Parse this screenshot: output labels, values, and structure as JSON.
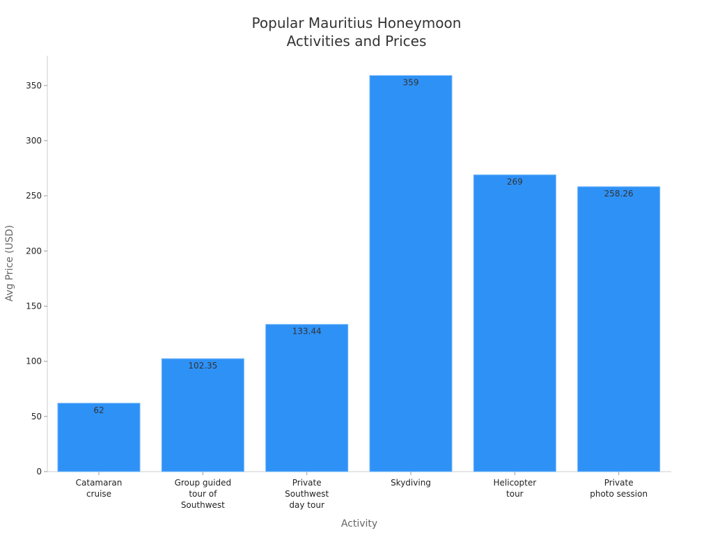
{
  "chart_data": {
    "type": "bar",
    "title_lines": [
      "Popular Mauritius Honeymoon",
      "Activities and Prices"
    ],
    "xlabel": "Activity",
    "ylabel": "Avg Price (USD)",
    "categories": [
      [
        "Catamaran",
        "cruise"
      ],
      [
        "Group guided",
        "tour of",
        "Southwest"
      ],
      [
        "Private",
        "Southwest",
        "day tour"
      ],
      [
        "Skydiving"
      ],
      [
        "Helicopter",
        "tour"
      ],
      [
        "Private",
        "photo session"
      ]
    ],
    "values": [
      62,
      102.35,
      133.44,
      359,
      269,
      258.26
    ],
    "data_labels": [
      "62",
      "102.35",
      "133.44",
      "359",
      "269",
      "258.26"
    ],
    "yticks": [
      0,
      50,
      100,
      150,
      200,
      250,
      300,
      350
    ],
    "ylim": [
      0,
      377
    ],
    "grid": false,
    "legend": "none",
    "bar_color": "#2e91f6",
    "bar_edge_color": "#6fb5fa"
  }
}
